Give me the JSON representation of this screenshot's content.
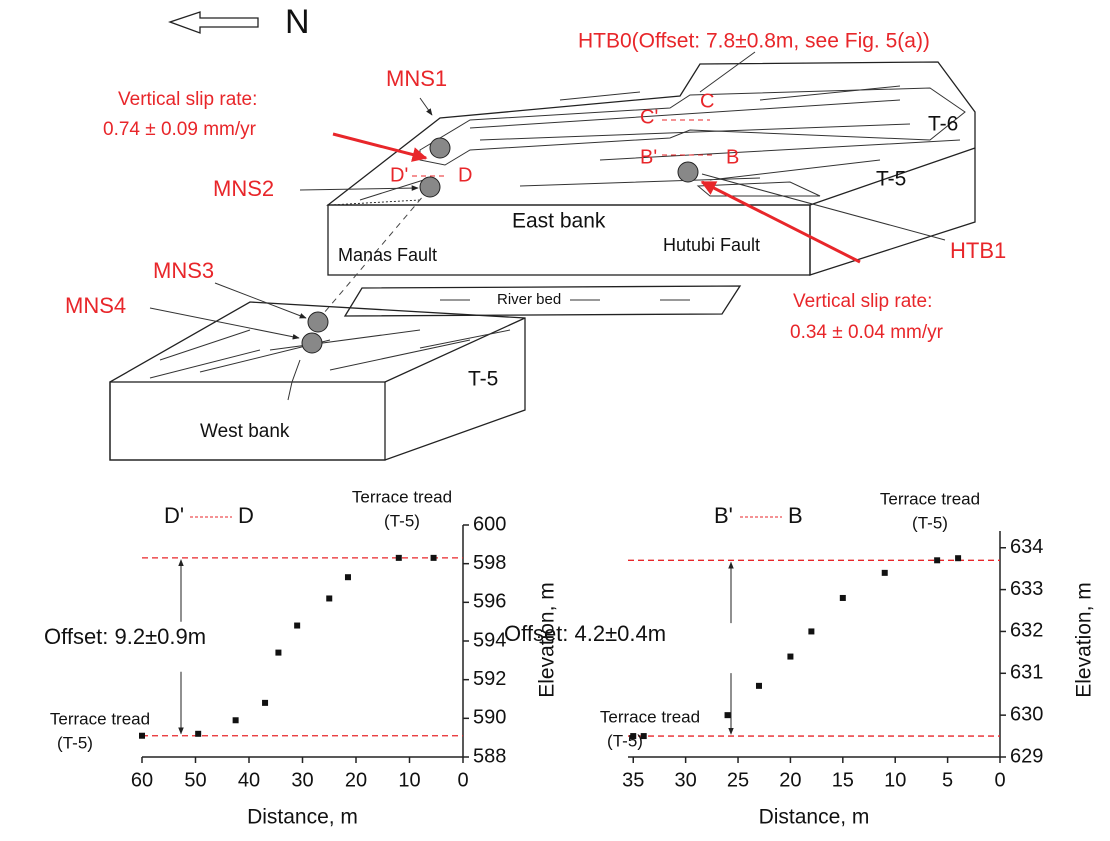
{
  "diagram": {
    "north": "N",
    "htb0": "HTB0(Offset: 7.8±0.8m, see Fig. 5(a))",
    "rate_left": [
      "Vertical slip rate:",
      "0.74 ± 0.09 mm/yr"
    ],
    "rate_right": [
      "Vertical slip rate:",
      "0.34 ± 0.04 mm/yr"
    ],
    "sites": [
      "MNS1",
      "MNS2",
      "MNS3",
      "MNS4",
      "HTB1"
    ],
    "profiles": [
      "C'",
      "C",
      "D'",
      "D",
      "B'",
      "B"
    ],
    "terraces": [
      "T-6",
      "T-5",
      "T-5"
    ],
    "east_bank": "East bank",
    "west_bank": "West bank",
    "faults": [
      "Manas Fault",
      "Hutubi Fault"
    ],
    "river_bed": "River bed"
  },
  "chart_data": [
    {
      "type": "scatter",
      "x": [
        60,
        49.5,
        42.5,
        37,
        34.5,
        31,
        25,
        21.5,
        12,
        5.5
      ],
      "values": [
        589.1,
        589.2,
        589.9,
        590.8,
        593.4,
        594.8,
        596.2,
        597.3,
        598.3,
        598.3
      ],
      "color": "#111111",
      "xlim": [
        60,
        0
      ],
      "xticks": [
        60,
        50,
        40,
        30,
        20,
        10,
        0
      ],
      "ylim": [
        588,
        600
      ],
      "yticks": [
        588,
        590,
        592,
        594,
        596,
        598,
        600
      ],
      "xlabel": "Distance, m",
      "ylabel": "Elevation, m",
      "profile": [
        "D'",
        "D"
      ],
      "upper_label": [
        "Terrace tread",
        "(T-5)"
      ],
      "lower_label": [
        "Terrace tread",
        "(T-5)"
      ],
      "offset_label": "Offset: 9.2±0.9m",
      "reference_lines": [
        598.3,
        589.1
      ],
      "reference_color": "#e8262a"
    },
    {
      "type": "scatter",
      "x": [
        35,
        34,
        26,
        23,
        20,
        18,
        15,
        11,
        6,
        4
      ],
      "values": [
        629.5,
        629.5,
        630.0,
        630.7,
        631.4,
        632.0,
        632.8,
        633.4,
        633.7,
        633.75
      ],
      "color": "#111111",
      "xlim": [
        35.5,
        0
      ],
      "xticks": [
        35,
        30,
        25,
        20,
        15,
        10,
        5,
        0
      ],
      "ylim": [
        629,
        634.4
      ],
      "yticks": [
        629,
        630,
        631,
        632,
        633,
        634
      ],
      "xlabel": "Distance, m",
      "ylabel": "Elevation, m",
      "profile": [
        "B'",
        "B"
      ],
      "upper_label": [
        "Terrace tread",
        "(T-5)"
      ],
      "lower_label": [
        "Terrace tread",
        "(T-5)"
      ],
      "offset_label": "Offset: 4.2±0.4m",
      "reference_lines": [
        633.7,
        629.5
      ],
      "reference_color": "#e8262a"
    }
  ]
}
